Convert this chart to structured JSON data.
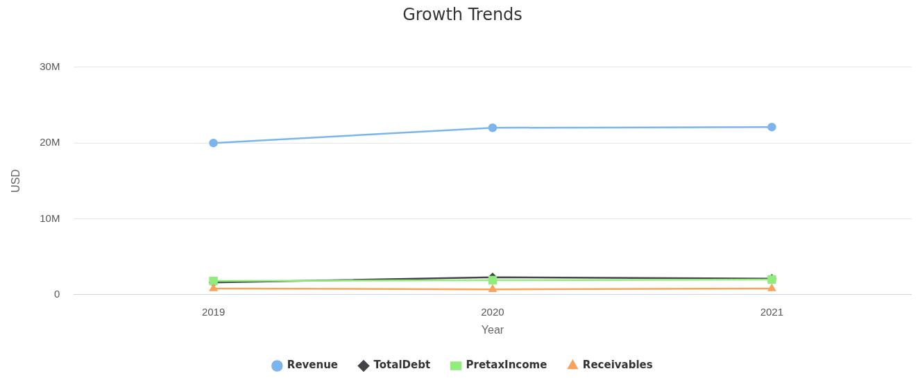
{
  "chart_data": {
    "type": "line",
    "title": "Growth Trends",
    "xlabel": "Year",
    "ylabel": "USD",
    "categories": [
      "2019",
      "2020",
      "2021"
    ],
    "series": [
      {
        "name": "Revenue",
        "color": "#7cb5ec",
        "marker": "circle",
        "values": [
          20000000,
          22000000,
          22100000
        ]
      },
      {
        "name": "TotalDebt",
        "color": "#434348",
        "marker": "diamond",
        "values": [
          1600000,
          2300000,
          2100000
        ]
      },
      {
        "name": "PretaxIncome",
        "color": "#90ed7d",
        "marker": "square",
        "values": [
          1800000,
          1900000,
          2000000
        ]
      },
      {
        "name": "Receivables",
        "color": "#f7a35c",
        "marker": "triangle",
        "values": [
          800000,
          700000,
          800000
        ]
      }
    ],
    "ylim": [
      0,
      30000000
    ],
    "yticks": [
      {
        "value": 0,
        "label": "0"
      },
      {
        "value": 10000000,
        "label": "10M"
      },
      {
        "value": 20000000,
        "label": "20M"
      },
      {
        "value": 30000000,
        "label": "30M"
      }
    ],
    "grid": "y",
    "legend": "bottom"
  }
}
